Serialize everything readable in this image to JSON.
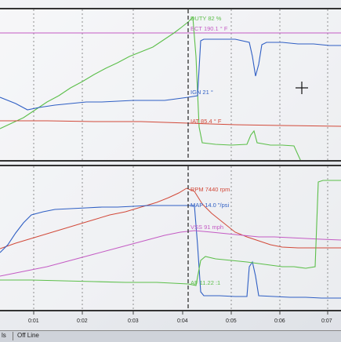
{
  "top_labels": {
    "duty": "DUTY 82 %",
    "ect": "ECT 190.1 ° F",
    "ign": "IGN 21 °",
    "iat": "IAT 85.4 ° F"
  },
  "bottom_labels": {
    "rpm": "RPM 7440 rpm",
    "map": "MAP 14.0 \"/psi",
    "vss": "VSS 91 mph",
    "af": "AF 11.22 :1"
  },
  "x_ticks": [
    "0:01",
    "0:02",
    "0:03",
    "0:04",
    "0:05",
    "0:06",
    "0:07"
  ],
  "status": {
    "left": "ls",
    "mode": "Off Line"
  },
  "colors": {
    "duty": "#5cbf4a",
    "ect": "#c45bc4",
    "ign": "#2f5fc4",
    "iat": "#d24a3a",
    "rpm": "#d24a3a",
    "map": "#2f5fc4",
    "vss": "#c45bc4",
    "af": "#5cbf4a",
    "cursor": "#222222"
  }
}
